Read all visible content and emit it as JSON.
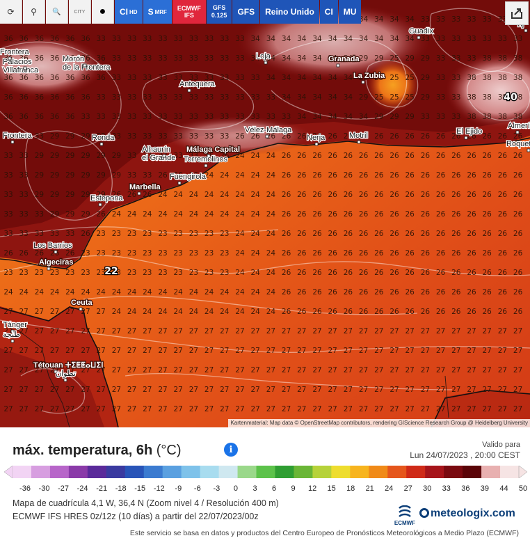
{
  "toolbar": {
    "buttons": [
      {
        "name": "refresh",
        "icon": "refresh-icon",
        "glyph": "⟳"
      },
      {
        "name": "location",
        "icon": "location-pin-icon",
        "glyph": "⚲"
      },
      {
        "name": "zoom",
        "icon": "magnifier-icon",
        "glyph": "🔍"
      },
      {
        "name": "city",
        "label": "CITY"
      },
      {
        "name": "dot",
        "icon": "dot-icon",
        "glyph": "●"
      }
    ],
    "models": [
      {
        "label": "CI",
        "sub": "HD",
        "style": "blue"
      },
      {
        "label": "S",
        "sub": "MRF",
        "style": "blue"
      },
      {
        "label": "ECMWF",
        "sub": "IFS",
        "style": "red"
      },
      {
        "label": "GFS",
        "sub": "0.125",
        "style": "navy"
      },
      {
        "label": "GFS",
        "sub": "",
        "style": "navy"
      },
      {
        "label": "Reino Unido",
        "sub": "",
        "style": "navy"
      },
      {
        "label": "CI",
        "sub": "",
        "style": "navy"
      },
      {
        "label": "MU",
        "sub": "",
        "style": "navy"
      }
    ]
  },
  "map": {
    "attribution": "Kartenmaterial: Map data © OpenStreetMap contributors, rendering GIScience Research Group @ Heidelberg University",
    "highlight_values": [
      {
        "text": "22",
        "place": "strait"
      },
      {
        "text": "40",
        "place": "east"
      }
    ],
    "places": [
      "Guadix",
      "Palacios\nVillafranca",
      "Morón\nde la Frontera",
      "Loja",
      "Granada",
      "La Zubia",
      "Antequera",
      "Vélez-Málaga",
      "Nerja",
      "Motril",
      "El Ejido",
      "Roquetas de Mar",
      "Almería",
      "Ronda",
      "Alhaurín\nel Grande",
      "Málaga Capital",
      "Torremolinos",
      "Fuengirola",
      "Marbella",
      "Estepona",
      "Los Barrios",
      "Algeciras",
      "Ceuta",
      "Tétouan ⵜⵉⵟⵟⴰⵡⵉⵏ",
      "تطوان",
      "Tánger",
      "طنجة",
      "Tij",
      "Frontera",
      "Frontera"
    ]
  },
  "panel": {
    "title": "máx. temperatura, 6h",
    "unit": "(°C)",
    "valid_label": "Valido para",
    "valid_date": "Lun 24/07/2023 , 20:00 CEST",
    "scale_labels": [
      "-36",
      "-30",
      "-27",
      "-24",
      "-21",
      "-18",
      "-15",
      "-12",
      "-9",
      "-6",
      "-3",
      "0",
      "3",
      "6",
      "9",
      "12",
      "15",
      "18",
      "21",
      "24",
      "27",
      "30",
      "33",
      "36",
      "39",
      "44",
      "50"
    ],
    "grid_info": "Mapa de cuadrícula 4,1 W, 36,4 N (Zoom nivel 4 / Resolución 400 m)",
    "model_info": "ECMWF IFS HRES 0z/12z (10 días) a partir del 22/07/2023/00z",
    "ecmwf_logo": "ECMWF",
    "brand": "meteologix.com",
    "disclaimer": "Este servicio se basa en datos y productos del Centro Europeo de Pronósticos Meteorológicos a Medio Plazo (ECMWF)"
  },
  "colors": {
    "sea": "#e8561c",
    "land_hot": "#8a1010",
    "land_hotter": "#5e0606",
    "cool_spot": "#f08a1a",
    "coast": "#111111"
  }
}
